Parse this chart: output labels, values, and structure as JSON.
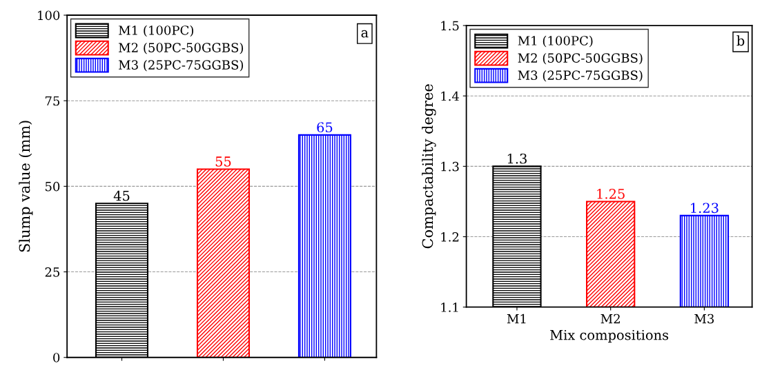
{
  "chart_data": [
    {
      "type": "bar",
      "ylabel": "Slump value (mm)",
      "categories": [
        null,
        null,
        null
      ],
      "series": [
        {
          "name": "M1 (100PC)",
          "color": "#000000",
          "values": [
            45,
            null,
            null
          ]
        },
        {
          "name": "M2 (50PC-50GGBS)",
          "color": "#ff0000",
          "values": [
            null,
            55,
            null
          ]
        },
        {
          "name": "M3 (25PC-75GGBS)",
          "color": "#0000ff",
          "values": [
            null,
            null,
            65
          ]
        }
      ],
      "ylim": [
        0,
        100
      ],
      "yticks": [
        0,
        25,
        50,
        75,
        100
      ],
      "grid": "y",
      "legend": "top left",
      "data_labels": true,
      "annotations": [
        "a"
      ]
    },
    {
      "type": "bar",
      "xlabel": "Mix compositions",
      "ylabel": "Compactability degree",
      "categories": [
        "M1",
        "M2",
        "M3"
      ],
      "series": [
        {
          "name": "M1 (100PC)",
          "color": "#000000",
          "values": [
            1.3,
            null,
            null
          ]
        },
        {
          "name": "M2 (50PC-50GGBS)",
          "color": "#ff0000",
          "values": [
            null,
            1.25,
            null
          ]
        },
        {
          "name": "M3 (25PC-75GGBS)",
          "color": "#0000ff",
          "values": [
            null,
            null,
            1.23
          ]
        }
      ],
      "ylim": [
        1.1,
        1.5
      ],
      "yticks": [
        1.1,
        1.2,
        1.3,
        1.4,
        1.5
      ],
      "grid": "y",
      "legend": "top left",
      "data_labels": true,
      "annotations": [
        "b"
      ]
    }
  ]
}
